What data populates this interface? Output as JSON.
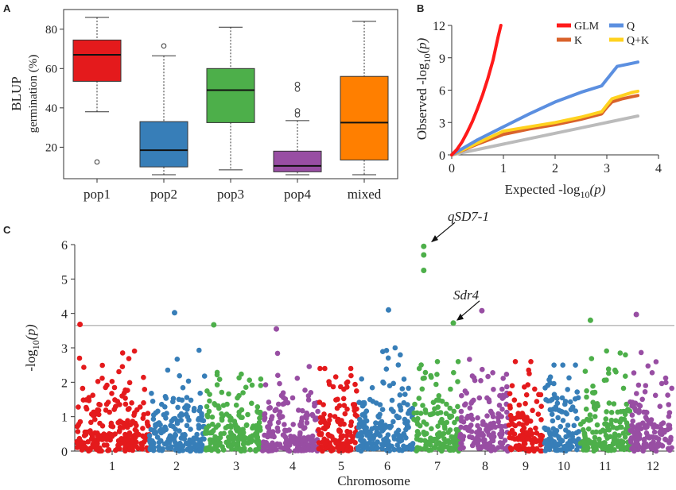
{
  "panels": {
    "a": "A",
    "b": "B",
    "c": "C"
  },
  "chart_data": [
    {
      "type": "box",
      "panel": "A",
      "ylabel_line1": "BLUP",
      "ylabel_line2": "germination (%)",
      "ylim": [
        4,
        90
      ],
      "yticks": [
        20,
        40,
        60,
        80
      ],
      "categories": [
        "pop1",
        "pop2",
        "pop3",
        "pop4",
        "mixed"
      ],
      "colors": [
        "#e41a1c",
        "#377eb8",
        "#4daf4a",
        "#984ea3",
        "#ff7f00"
      ],
      "boxes": [
        {
          "name": "pop1",
          "min": 38,
          "q1": 53.5,
          "median": 67,
          "q3": 74.5,
          "max": 86,
          "outliers": [
            12.5
          ]
        },
        {
          "name": "pop2",
          "min": 6,
          "q1": 10,
          "median": 18.5,
          "q3": 33,
          "max": 66.5,
          "outliers": [
            71.5
          ]
        },
        {
          "name": "pop3",
          "min": 8.5,
          "q1": 32.5,
          "median": 49,
          "q3": 60,
          "max": 81,
          "outliers": []
        },
        {
          "name": "pop4",
          "min": 6,
          "q1": 7.5,
          "median": 10.5,
          "q3": 18,
          "max": 33.5,
          "outliers": [
            36.5,
            38.5,
            49.5,
            52
          ]
        },
        {
          "name": "mixed",
          "min": 6,
          "q1": 13.5,
          "median": 32.5,
          "q3": 56,
          "max": 84,
          "outliers": []
        }
      ]
    },
    {
      "type": "line",
      "panel": "B",
      "xlabel": "Expected -log",
      "ylabel": "Observed -log",
      "label_sub": "10",
      "label_arg": "(p)",
      "xlim": [
        0,
        4
      ],
      "ylim": [
        0,
        12
      ],
      "xticks": [
        0,
        1,
        2,
        3,
        4
      ],
      "yticks": [
        0,
        3,
        6,
        9,
        12
      ],
      "series": [
        {
          "name": "GLM",
          "color": "#ff1a1a",
          "x": [
            0,
            0.1,
            0.2,
            0.3,
            0.4,
            0.5,
            0.6,
            0.7,
            0.8,
            0.9,
            0.95
          ],
          "y": [
            0,
            0.5,
            1.2,
            2.1,
            3.1,
            4.3,
            5.6,
            7.1,
            8.8,
            11.0,
            12.0
          ]
        },
        {
          "name": "K",
          "color": "#d9622b",
          "x": [
            0,
            0.5,
            1,
            1.5,
            2,
            2.5,
            2.9,
            3.0,
            3.1,
            3.3,
            3.5,
            3.6
          ],
          "y": [
            0,
            1.0,
            1.9,
            2.4,
            2.8,
            3.3,
            3.8,
            4.4,
            4.9,
            5.2,
            5.4,
            5.5
          ]
        },
        {
          "name": "Q",
          "color": "#5b8fe0",
          "x": [
            0,
            0.5,
            1,
            1.5,
            2,
            2.5,
            2.9,
            3.0,
            3.2,
            3.4,
            3.6
          ],
          "y": [
            0,
            1.4,
            2.6,
            3.8,
            4.9,
            5.8,
            6.4,
            7.0,
            8.2,
            8.4,
            8.6
          ]
        },
        {
          "name": "Q+K",
          "color": "#ffd21f",
          "x": [
            0,
            0.5,
            1,
            1.5,
            2,
            2.5,
            2.9,
            3.0,
            3.1,
            3.3,
            3.5,
            3.6
          ],
          "y": [
            0,
            1.1,
            2.2,
            2.6,
            3.0,
            3.5,
            4.0,
            4.6,
            5.2,
            5.5,
            5.8,
            5.9
          ]
        },
        {
          "name": "expected",
          "color": "#bbbbbb",
          "x": [
            0,
            3.6
          ],
          "y": [
            0,
            3.6
          ]
        }
      ],
      "legend": [
        "GLM",
        "Q",
        "K",
        "Q+K"
      ]
    },
    {
      "type": "scatter",
      "panel": "C",
      "xlabel": "Chromosome",
      "ylabel_prefix": "-log",
      "ylabel_sub": "10",
      "ylabel_arg": "(p)",
      "ylim": [
        0,
        6
      ],
      "yticks": [
        0,
        1,
        2,
        3,
        4,
        5,
        6
      ],
      "threshold": 3.65,
      "chromosomes": [
        "1",
        "2",
        "3",
        "4",
        "5",
        "6",
        "7",
        "8",
        "9",
        "10",
        "11",
        "12"
      ],
      "chromosome_colors": [
        "#e41a1c",
        "#377eb8",
        "#4daf4a",
        "#984ea3"
      ],
      "annotations": [
        {
          "label": "qSD7-1",
          "chromosome": 7,
          "value": 5.95
        },
        {
          "label": "Sdr4",
          "chromosome": 7,
          "value": 3.72
        }
      ],
      "top_hits": [
        {
          "chromosome": 1,
          "value": 3.68
        },
        {
          "chromosome": 2,
          "value": 4.02
        },
        {
          "chromosome": 3,
          "value": 3.67
        },
        {
          "chromosome": 4,
          "value": 3.55
        },
        {
          "chromosome": 6,
          "value": 4.1
        },
        {
          "chromosome": 7,
          "value": 5.95
        },
        {
          "chromosome": 7,
          "value": 5.7
        },
        {
          "chromosome": 7,
          "value": 5.25
        },
        {
          "chromosome": 8,
          "value": 4.08
        },
        {
          "chromosome": 11,
          "value": 3.8
        },
        {
          "chromosome": 12,
          "value": 3.97
        }
      ]
    }
  ]
}
